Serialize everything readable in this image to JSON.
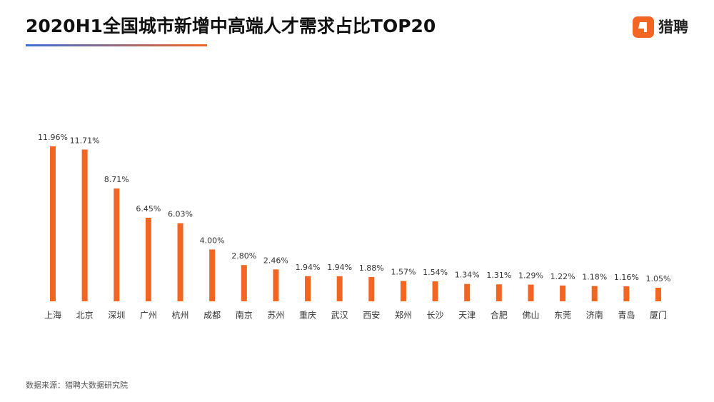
{
  "header": {
    "title": "2020H1全国城市新增中高端人才需求占比TOP20",
    "brand": "猎聘"
  },
  "chart_data": {
    "type": "bar",
    "color": "#f26522",
    "categories": [
      "上海",
      "北京",
      "深圳",
      "广州",
      "杭州",
      "成都",
      "南京",
      "苏州",
      "重庆",
      "武汉",
      "西安",
      "郑州",
      "长沙",
      "天津",
      "合肥",
      "佛山",
      "东莞",
      "济南",
      "青岛",
      "厦门"
    ],
    "values": [
      11.96,
      11.71,
      8.71,
      6.45,
      6.03,
      4.0,
      2.8,
      2.46,
      1.94,
      1.94,
      1.88,
      1.57,
      1.54,
      1.34,
      1.31,
      1.29,
      1.22,
      1.18,
      1.16,
      1.05
    ],
    "value_labels": [
      "11.96%",
      "11.71%",
      "8.71%",
      "6.45%",
      "6.03%",
      "4.00%",
      "2.80%",
      "2.46%",
      "1.94%",
      "1.94%",
      "1.88%",
      "1.57%",
      "1.54%",
      "1.34%",
      "1.31%",
      "1.29%",
      "1.22%",
      "1.18%",
      "1.16%",
      "1.05%"
    ]
  },
  "footer": {
    "source": "数据来源：猎聘大数据研究院"
  }
}
